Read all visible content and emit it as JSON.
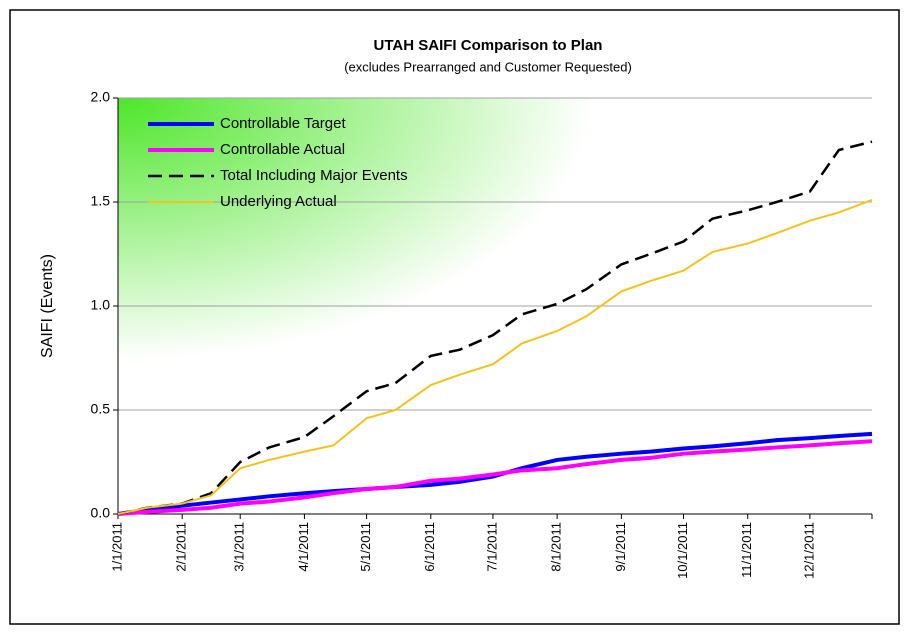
{
  "chart_data": {
    "type": "line",
    "title": "UTAH SAIFI Comparison to Plan",
    "subtitle": "(excludes Prearranged and Customer Requested)",
    "y_label": "SAIFI (Events)",
    "x": [
      "1/1/2011",
      "1/15/2011",
      "2/1/2011",
      "2/15/2011",
      "3/1/2011",
      "3/15/2011",
      "4/1/2011",
      "4/15/2011",
      "5/1/2011",
      "5/15/2011",
      "6/1/2011",
      "6/15/2011",
      "7/1/2011",
      "7/15/2011",
      "8/1/2011",
      "8/15/2011",
      "9/1/2011",
      "9/15/2011",
      "10/1/2011",
      "10/15/2011",
      "11/1/2011",
      "11/15/2011",
      "12/1/2011",
      "12/15/2011",
      "12/31/2011"
    ],
    "series": [
      {
        "name": "Controllable Target",
        "color": "#0000ff",
        "width": 4,
        "dashed": false,
        "values": [
          0,
          0.02,
          0.04,
          0.055,
          0.07,
          0.085,
          0.1,
          0.11,
          0.12,
          0.13,
          0.14,
          0.155,
          0.18,
          0.22,
          0.26,
          0.275,
          0.29,
          0.3,
          0.315,
          0.325,
          0.34,
          0.355,
          0.365,
          0.375,
          0.385
        ]
      },
      {
        "name": "Controllable Actual",
        "color": "#ff00ff",
        "width": 4,
        "dashed": false,
        "values": [
          0,
          0.01,
          0.02,
          0.03,
          0.05,
          0.06,
          0.08,
          0.1,
          0.12,
          0.13,
          0.16,
          0.17,
          0.19,
          0.21,
          0.22,
          0.24,
          0.26,
          0.27,
          0.29,
          0.3,
          0.31,
          0.32,
          0.33,
          0.34,
          0.35
        ]
      },
      {
        "name": "Total Including Major Events",
        "color": "#000000",
        "width": 2.5,
        "dashed": true,
        "values": [
          0,
          0.03,
          0.05,
          0.1,
          0.25,
          0.32,
          0.37,
          0.47,
          0.59,
          0.63,
          0.76,
          0.79,
          0.86,
          0.96,
          1.01,
          1.08,
          1.2,
          1.25,
          1.31,
          1.42,
          1.46,
          1.5,
          1.55,
          1.75,
          1.79
        ]
      },
      {
        "name": "Underlying Actual",
        "color": "#f5c21b",
        "width": 2,
        "dashed": false,
        "values": [
          0,
          0.03,
          0.05,
          0.09,
          0.22,
          0.26,
          0.3,
          0.33,
          0.46,
          0.5,
          0.62,
          0.67,
          0.72,
          0.82,
          0.88,
          0.95,
          1.07,
          1.12,
          1.17,
          1.26,
          1.3,
          1.35,
          1.41,
          1.45,
          1.51
        ]
      }
    ],
    "xlim": [
      "1/1/2011",
      "12/31/2011"
    ],
    "xticks": [
      "1/1/2011",
      "2/1/2011",
      "3/1/2011",
      "4/1/2011",
      "5/1/2011",
      "6/1/2011",
      "7/1/2011",
      "8/1/2011",
      "9/1/2011",
      "10/1/2011",
      "11/1/2011",
      "12/1/2011"
    ],
    "ylim": [
      0,
      2
    ],
    "yticks": [
      {
        "value": 0,
        "label": "0.0"
      },
      {
        "value": 0.5,
        "label": "0.5"
      },
      {
        "value": 1,
        "label": "1.0"
      },
      {
        "value": 1.5,
        "label": "1.5"
      },
      {
        "value": 2,
        "label": "2.0"
      }
    ],
    "grid": true,
    "legend": "top-left"
  }
}
